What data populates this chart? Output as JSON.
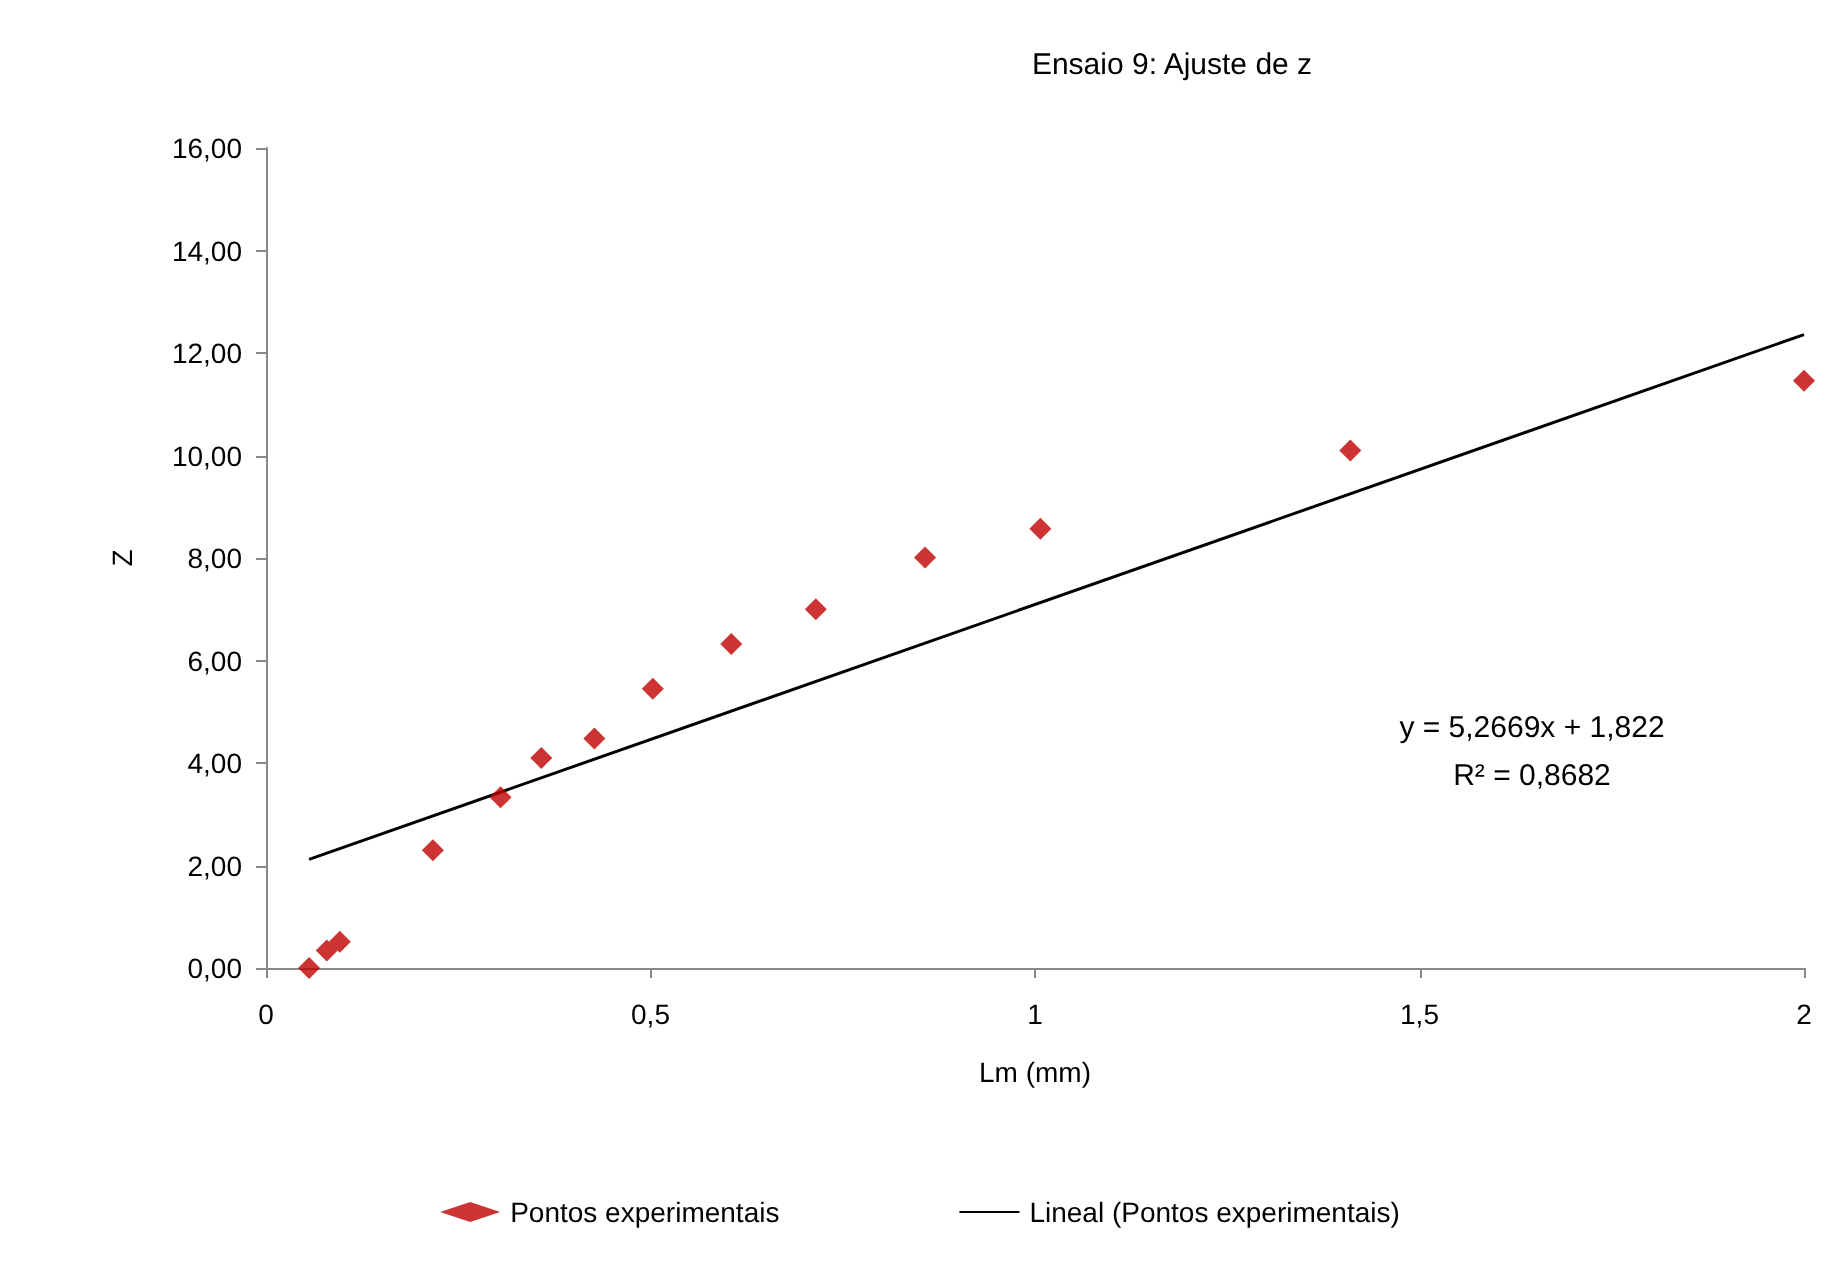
{
  "chart_data": {
    "type": "scatter",
    "title": "Ensaio 9: Ajuste de z",
    "xlabel": "Lm (mm)",
    "ylabel": "Z",
    "xlim": [
      0,
      2
    ],
    "xticks": [
      0,
      {
        "value": 0.5,
        "label": "0,5"
      },
      1,
      {
        "value": 1.5,
        "label": "1,5"
      },
      2
    ],
    "ylim": [
      0,
      16
    ],
    "yticks": [
      {
        "value": 0,
        "label": "0,00"
      },
      {
        "value": 2,
        "label": "2,00"
      },
      {
        "value": 4,
        "label": "4,00"
      },
      {
        "value": 6,
        "label": "6,00"
      },
      {
        "value": 8,
        "label": "8,00"
      },
      {
        "value": 10,
        "label": "10,00"
      },
      {
        "value": 12,
        "label": "12,00"
      },
      {
        "value": 14,
        "label": "14,00"
      },
      {
        "value": 16,
        "label": "16,00"
      }
    ],
    "grid": false,
    "legend": "bottom",
    "marker": "diamond",
    "annotations": [
      "y = 5,2669x + 1,822",
      "R² = 0,8682"
    ],
    "series": [
      {
        "name": "Pontos experimentais",
        "color": "#c00000",
        "x": [
          0.056,
          0.079,
          0.096,
          0.217,
          0.305,
          0.358,
          0.427,
          0.503,
          0.605,
          0.715,
          0.857,
          1.007,
          1.41,
          2.0
        ],
        "values": [
          0,
          0.34,
          0.51,
          2.3,
          3.33,
          4.1,
          4.48,
          5.45,
          6.32,
          7.0,
          8.01,
          8.57,
          10.1,
          11.46
        ]
      },
      {
        "name": "Lineal (Pontos experimentais)",
        "type": "line",
        "color": "#000000",
        "line_style": "solid",
        "marker": "none",
        "x": [
          0.056,
          2.0
        ],
        "values": [
          2.12,
          12.36
        ]
      }
    ]
  }
}
